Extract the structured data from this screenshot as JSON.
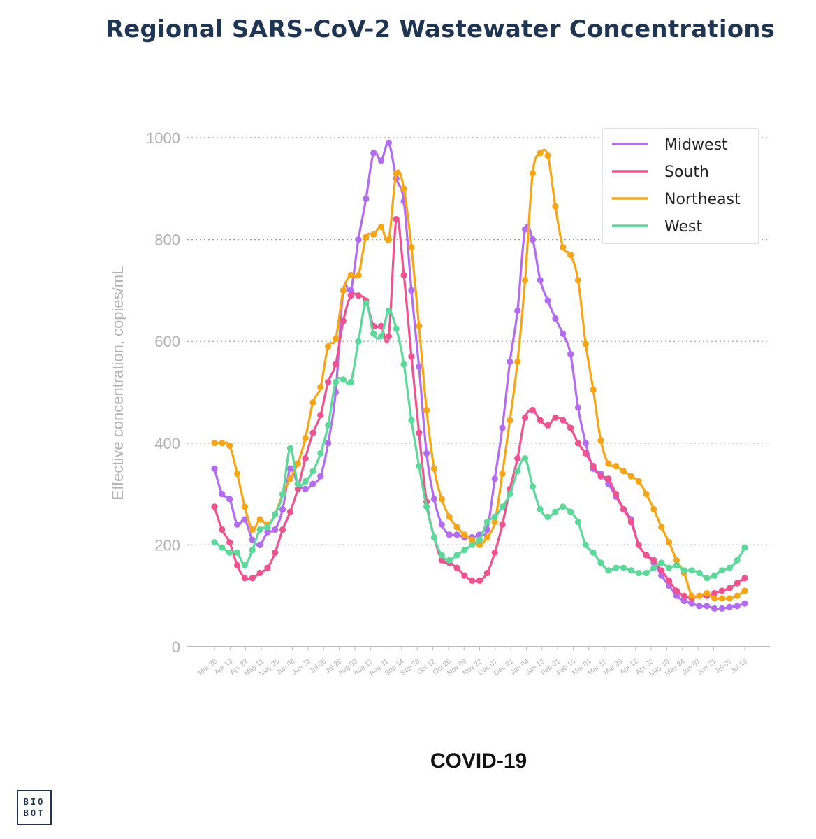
{
  "header": {
    "title": "Regional SARS-CoV-2 Wastewater Concentrations"
  },
  "footer": {
    "label": "COVID-19"
  },
  "logo": {
    "line1": "BIO",
    "line2": "BOT"
  },
  "chart_data": {
    "type": "line",
    "title": "Regional SARS-CoV-2 Wastewater Concentrations",
    "xlabel": "",
    "ylabel": "Effective concentration, copies/mL",
    "ylim": [
      0,
      1000
    ],
    "yticks": [
      0,
      200,
      400,
      600,
      800,
      1000
    ],
    "grid": true,
    "legend_position": "top-right",
    "x_tick_labels": [
      "Mar 30",
      "Apr 13",
      "Apr 27",
      "May 11",
      "May 25",
      "Jun 08",
      "Jun 22",
      "Jul 06",
      "Jul 20",
      "Aug 03",
      "Aug 17",
      "Aug 31",
      "Sep 14",
      "Sep 28",
      "Oct 12",
      "Oct 26",
      "Nov 09",
      "Nov 23",
      "Dec 07",
      "Dec 21",
      "Jan 04",
      "Jan 18",
      "Feb 01",
      "Feb 15",
      "Mar 01",
      "Mar 15",
      "Mar 29",
      "Apr 12",
      "Apr 26",
      "May 10",
      "May 24",
      "Jun 07",
      "Jun 21",
      "Jul 05",
      "Jul 19"
    ],
    "series": [
      {
        "name": "Midwest",
        "color": "#b36bf2",
        "values": [
          350,
          300,
          290,
          240,
          250,
          210,
          200,
          225,
          230,
          270,
          350,
          320,
          310,
          320,
          335,
          400,
          500,
          700,
          700,
          800,
          880,
          970,
          955,
          990,
          920,
          875,
          700,
          550,
          380,
          290,
          240,
          220,
          220,
          215,
          215,
          220,
          230,
          330,
          430,
          560,
          660,
          820,
          800,
          720,
          680,
          645,
          615,
          575,
          470,
          400,
          350,
          340,
          320,
          295,
          270,
          250,
          200,
          180,
          165,
          140,
          120,
          100,
          90,
          85,
          80,
          80,
          75,
          75,
          78,
          80,
          85
        ]
      },
      {
        "name": "South",
        "color": "#f0528f",
        "values": [
          275,
          230,
          205,
          160,
          135,
          135,
          145,
          155,
          185,
          230,
          265,
          310,
          370,
          420,
          455,
          520,
          555,
          640,
          690,
          690,
          680,
          630,
          630,
          610,
          840,
          730,
          570,
          420,
          285,
          215,
          170,
          165,
          155,
          140,
          130,
          130,
          145,
          185,
          240,
          310,
          370,
          450,
          465,
          445,
          435,
          450,
          445,
          430,
          400,
          380,
          355,
          335,
          330,
          300,
          270,
          245,
          200,
          180,
          170,
          150,
          130,
          110,
          100,
          95,
          100,
          100,
          105,
          110,
          115,
          125,
          135
        ]
      },
      {
        "name": "Northeast",
        "color": "#f6a614",
        "values": [
          400,
          400,
          395,
          340,
          275,
          230,
          250,
          240,
          260,
          300,
          330,
          360,
          410,
          480,
          510,
          590,
          605,
          700,
          730,
          730,
          805,
          810,
          825,
          800,
          930,
          900,
          785,
          630,
          465,
          350,
          290,
          255,
          235,
          220,
          210,
          200,
          215,
          245,
          340,
          445,
          560,
          720,
          930,
          970,
          965,
          865,
          785,
          770,
          720,
          595,
          505,
          405,
          360,
          355,
          345,
          335,
          325,
          300,
          270,
          235,
          205,
          170,
          145,
          100,
          100,
          105,
          95,
          95,
          95,
          100,
          110
        ]
      },
      {
        "name": "West",
        "color": "#5bd99b",
        "values": [
          205,
          195,
          185,
          185,
          160,
          190,
          230,
          235,
          260,
          300,
          390,
          320,
          325,
          345,
          380,
          435,
          520,
          525,
          520,
          600,
          675,
          615,
          610,
          660,
          625,
          555,
          445,
          355,
          275,
          215,
          180,
          170,
          180,
          190,
          200,
          210,
          245,
          255,
          275,
          300,
          345,
          370,
          315,
          270,
          255,
          265,
          275,
          265,
          245,
          200,
          185,
          165,
          150,
          155,
          155,
          150,
          145,
          145,
          155,
          165,
          155,
          160,
          150,
          150,
          145,
          135,
          140,
          150,
          155,
          170,
          195
        ]
      }
    ]
  }
}
